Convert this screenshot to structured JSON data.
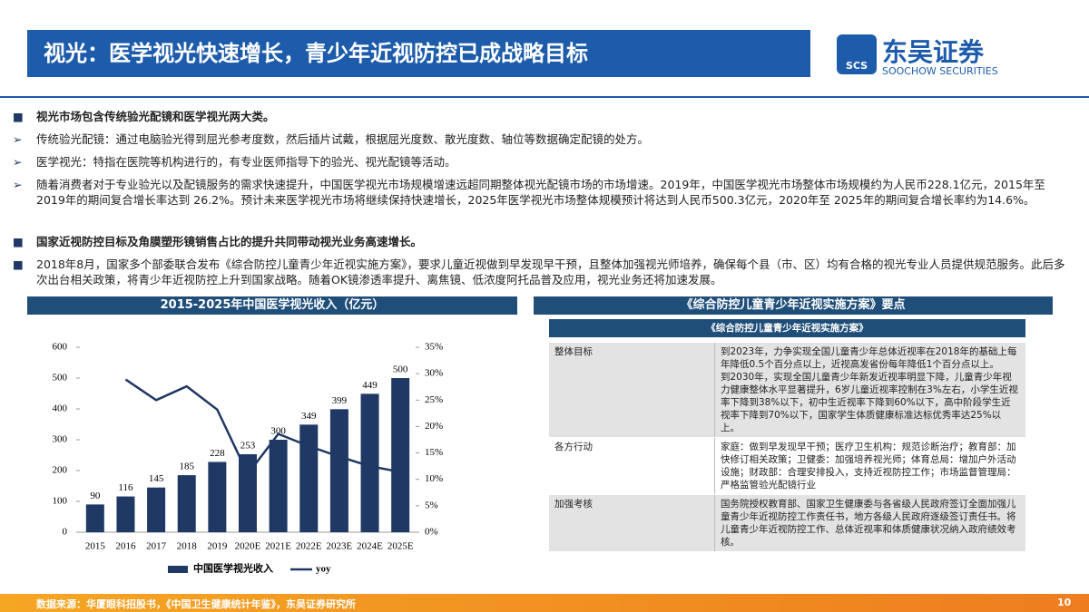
{
  "header": {
    "title": "视光：医学视光快速增长，青少年近视防控已成战略目标"
  },
  "logo": {
    "name": "东吴证券",
    "english": "SOOCHOW SECURITIES",
    "mark": "SCS"
  },
  "bullets": [
    "视光市场包含传统验光配镜和医学视光两大类。",
    "传统验光配镜：通过电脑验光得到屈光参考度数，然后插片试戴，根据屈光度数、散光度数、轴位等数据确定配镜的处方。",
    "医学视光：特指在医院等机构进行的，有专业医师指导下的验光、视光配镜等活动。",
    "随着消费者对于专业验光以及配镜服务的需求快速提升，中国医学视光市场规模增速远超同期整体视光配镜市场的市场增速。2019年，中国医学视光市场整体市场规模约为人民币228.1亿元，2015年至2019年的期间复合增长率达到 26.2%。预计未来医学视光市场将继续保持快速增长，2025年医学视光市场整体规模预计将达到人民币500.3亿元，2020年至 2025年的期间复合增长率约为14.6%。",
    "国家近视防控目标及角膜塑形镜销售占比的提升共同带动视光业务高速增长。",
    "2018年8月，国家多个部委联合发布《综合防控儿童青少年近视实施方案》，要求儿童近视做到早发现早干预，且整体加强视光师培养，确保每个县（市、区）均有合格的视光专业人员提供规范服务。此后多次出台相关政策，将青少年近视防控上升到国家战略。随着OK镜渗透率提升、离焦镜、低浓度阿托品普及应用，视光业务还将加速发展。"
  ],
  "chart_data": {
    "type": "combo",
    "title": "2015-2025年中国医学视光收入（亿元）",
    "categories": [
      "2015",
      "2016",
      "2017",
      "2018",
      "2019",
      "2020E",
      "2021E",
      "2022E",
      "2023E",
      "2024E",
      "2025E"
    ],
    "series": [
      {
        "name": "中国医学视光收入",
        "type": "bar",
        "color": "#1f3864",
        "values": [
          90,
          116,
          145,
          185,
          228,
          253,
          300,
          349,
          399,
          449,
          500
        ]
      },
      {
        "name": "yoy",
        "type": "line",
        "axis": "y2",
        "color": "#1f3864",
        "values": [
          null,
          28.9,
          25.0,
          27.6,
          23.2,
          11.0,
          18.6,
          16.3,
          14.3,
          12.5,
          11.4
        ]
      }
    ],
    "ylim": [
      0,
      600
    ],
    "yticks": [
      0,
      100,
      200,
      300,
      400,
      500,
      600
    ],
    "y2lim": [
      0,
      35
    ],
    "y2ticks": [
      {
        "value": 0,
        "label": "0%"
      },
      {
        "value": 5,
        "label": "5%"
      },
      {
        "value": 10,
        "label": "10%"
      },
      {
        "value": 15,
        "label": "15%"
      },
      {
        "value": 20,
        "label": "20%"
      },
      {
        "value": 25,
        "label": "25%"
      },
      {
        "value": 30,
        "label": "30%"
      },
      {
        "value": 35,
        "label": "35%"
      }
    ],
    "legend": "bottom"
  },
  "table": {
    "title": "《综合防控儿童青少年近视实施方案》要点",
    "header": "《综合防控儿童青少年近视实施方案》",
    "rows": [
      [
        "整体目标",
        [
          "到2023年，力争实现全国儿童青少年总体近视率在2018年的基础上每年降低0.5个百分点以上，近视高发省份每年降低1个百分点以上。",
          "到2030年，实现全国儿童青少年新发近视率明显下降，儿童青少年视力健康整体水平显著提升，6岁儿童近视率控制在3%左右，小学生近视率下降到38%以下，初中生近视率下降到60%以下，高中阶段学生近视率下降到70%以下，国家学生体质健康标准达标优秀率达25%以上。"
        ]
      ],
      [
        "各方行动",
        [
          "家庭：做到早发现早干预；医疗卫生机构：规范诊断治疗；教育部：加快修订相关政策；卫健委：加强培养视光师；体育总局：增加户外活动设施；财政部：合理安排投入，支持近视防控工作；市场监督管理局：严格监管验光配镜行业"
        ]
      ],
      [
        "加强考核",
        [
          "国务院授权教育部、国家卫生健康委与各省级人民政府签订全面加强儿童青少年近视防控工作责任书，地方各级人民政府逐级签订责任书。将儿童青少年近视防控工作、总体近视率和体质健康状况纳入政府绩效考核。"
        ]
      ]
    ]
  },
  "footer": {
    "source": "数据来源：华厦眼科招股书，《中国卫生健康统计年鉴》，东吴证券研究所",
    "page": "10"
  }
}
